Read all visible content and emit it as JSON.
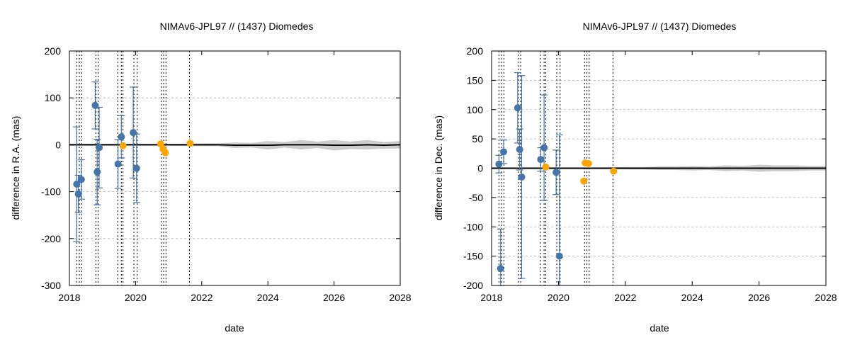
{
  "colors": {
    "ground_based": "#4575a8",
    "spacecraft": "#ffa500",
    "uncertainty_band": "#cccccc",
    "difference_line": "#000000",
    "grid": "#b0b0b0"
  },
  "chart_data": [
    {
      "type": "scatter",
      "title": "NIMAv6-JPL97 // (1437) Diomedes",
      "xlabel": "date",
      "ylabel": "difference in R.A. (mas)",
      "xlim": [
        2018,
        2028
      ],
      "ylim": [
        -300,
        200
      ],
      "x_ticks": [
        2018,
        2020,
        2022,
        2024,
        2026,
        2028
      ],
      "x_tick_labels": [
        "2018",
        "2020",
        "2022",
        "2024",
        "2026",
        "2028"
      ],
      "y_ticks": [
        -300,
        -200,
        -100,
        0,
        100,
        200
      ],
      "y_tick_labels": [
        "-300",
        "-200",
        "-100",
        "0",
        "100",
        "200"
      ],
      "grid": "horizontal dashed",
      "observation_epochs": [
        2018.22,
        2018.3,
        2018.37,
        2018.8,
        2018.87,
        2019.46,
        2019.57,
        2019.62,
        2019.95,
        2020.05,
        2020.78,
        2020.85,
        2020.92,
        2021.63
      ],
      "series": [
        {
          "style": "points with error bars",
          "color": "#4575a8",
          "points": [
            {
              "x": 2018.22,
              "y": -84,
              "err": 122
            },
            {
              "x": 2018.27,
              "y": -105,
              "err": 40
            },
            {
              "x": 2018.36,
              "y": -74,
              "err": 42
            },
            {
              "x": 2018.78,
              "y": 84,
              "err": 50
            },
            {
              "x": 2018.84,
              "y": -58,
              "err": 70
            },
            {
              "x": 2018.9,
              "y": -6,
              "err": 86
            },
            {
              "x": 2019.47,
              "y": -41,
              "err": 52
            },
            {
              "x": 2019.57,
              "y": 17,
              "err": 45
            },
            {
              "x": 2019.93,
              "y": 26,
              "err": 97
            },
            {
              "x": 2020.03,
              "y": -50,
              "err": 73
            }
          ]
        },
        {
          "style": "points",
          "color": "#ffa500",
          "points": [
            {
              "x": 2019.62,
              "y": -2
            },
            {
              "x": 2020.76,
              "y": 2
            },
            {
              "x": 2020.83,
              "y": -9
            },
            {
              "x": 2020.9,
              "y": -17
            },
            {
              "x": 2021.65,
              "y": 3
            }
          ]
        },
        {
          "style": "line with uncertainty band",
          "color": "#000000",
          "band_color": "#cccccc",
          "x": [
            2018,
            2019,
            2020,
            2021,
            2022,
            2022.5,
            2023,
            2023.5,
            2024,
            2024.5,
            2025,
            2025.5,
            2026,
            2026.5,
            2027,
            2027.5,
            2028
          ],
          "y": [
            0,
            0,
            0,
            0,
            0,
            0,
            -1,
            -1,
            -1,
            0,
            0,
            0,
            -1,
            -1,
            0,
            -1,
            0
          ],
          "band_halfwidth": [
            2,
            2,
            2,
            2,
            3,
            3,
            6,
            5,
            9,
            6,
            10,
            7,
            11,
            8,
            10,
            7,
            8
          ]
        }
      ]
    },
    {
      "type": "scatter",
      "title": "NIMAv6-JPL97 // (1437) Diomedes",
      "xlabel": "date",
      "ylabel": "difference in Dec. (mas)",
      "xlim": [
        2018,
        2028
      ],
      "ylim": [
        -200,
        200
      ],
      "x_ticks": [
        2018,
        2020,
        2022,
        2024,
        2026,
        2028
      ],
      "x_tick_labels": [
        "2018",
        "2020",
        "2022",
        "2024",
        "2026",
        "2028"
      ],
      "y_ticks": [
        -200,
        -150,
        -100,
        -50,
        0,
        50,
        100,
        150,
        200
      ],
      "y_tick_labels": [
        "-200",
        "-150",
        "-100",
        "-50",
        "0",
        "50",
        "100",
        "150",
        "200"
      ],
      "grid": "horizontal dashed",
      "observation_epochs": [
        2018.22,
        2018.3,
        2018.37,
        2018.8,
        2018.87,
        2019.46,
        2019.57,
        2019.62,
        2019.95,
        2020.05,
        2020.78,
        2020.85,
        2020.92,
        2021.63
      ],
      "series": [
        {
          "style": "points with error bars",
          "color": "#4575a8",
          "points": [
            {
              "x": 2018.22,
              "y": 7,
              "err": 15
            },
            {
              "x": 2018.27,
              "y": -171,
              "err": 67
            },
            {
              "x": 2018.36,
              "y": 28,
              "err": 20
            },
            {
              "x": 2018.78,
              "y": 103,
              "err": 60
            },
            {
              "x": 2018.84,
              "y": 32,
              "err": 35
            },
            {
              "x": 2018.9,
              "y": -15,
              "err": 173
            },
            {
              "x": 2019.47,
              "y": 15,
              "err": 20
            },
            {
              "x": 2019.57,
              "y": 35,
              "err": 90
            },
            {
              "x": 2019.93,
              "y": -7,
              "err": 38
            },
            {
              "x": 2020.03,
              "y": -150,
              "err": 207
            }
          ]
        },
        {
          "style": "points",
          "color": "#ffa500",
          "points": [
            {
              "x": 2019.62,
              "y": 2
            },
            {
              "x": 2020.76,
              "y": -22
            },
            {
              "x": 2020.8,
              "y": 9
            },
            {
              "x": 2020.9,
              "y": 8
            },
            {
              "x": 2021.65,
              "y": -5
            }
          ]
        },
        {
          "style": "line with uncertainty band",
          "color": "#000000",
          "band_color": "#cccccc",
          "x": [
            2018,
            2019,
            2020,
            2021,
            2022,
            2022.5,
            2023,
            2023.5,
            2024,
            2024.5,
            2025,
            2025.5,
            2026,
            2026.5,
            2027,
            2027.5,
            2028
          ],
          "y": [
            0,
            0,
            0,
            0,
            0,
            0,
            0,
            0,
            0,
            0,
            0,
            0,
            0,
            0,
            0,
            0,
            0
          ],
          "band_halfwidth": [
            1,
            1,
            1,
            1,
            2,
            2,
            3,
            3,
            4,
            3,
            5,
            4,
            6,
            5,
            5,
            4,
            4
          ]
        }
      ]
    }
  ]
}
